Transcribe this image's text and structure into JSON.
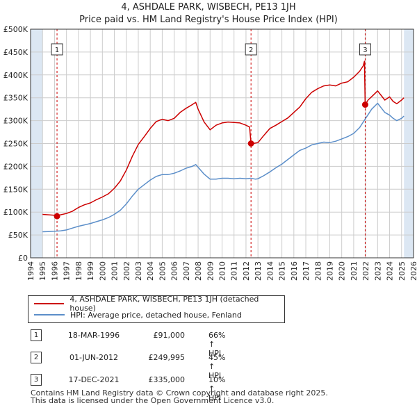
{
  "header": {
    "title_line1": "4, ASHDALE PARK, WISBECH, PE13 1JH",
    "title_line2": "Price paid vs. HM Land Registry's House Price Index (HPI)"
  },
  "colors": {
    "property": "#cc0000",
    "hpi": "#5b8ec9",
    "shade": "#dce7f3",
    "grid": "#cccccc",
    "marker_line": "#cc0000"
  },
  "legend": {
    "property_label": "4, ASHDALE PARK, WISBECH, PE13 1JH (detached house)",
    "hpi_label": "HPI: Average price, detached house, Fenland"
  },
  "sales": [
    {
      "num": "1",
      "date": "18-MAR-1996",
      "price": "£91,000",
      "hpi": "66% ↑ HPI"
    },
    {
      "num": "2",
      "date": "01-JUN-2012",
      "price": "£249,995",
      "hpi": "45% ↑ HPI"
    },
    {
      "num": "3",
      "date": "17-DEC-2021",
      "price": "£335,000",
      "hpi": "10% ↑ HPI"
    }
  ],
  "footer": {
    "line1": "Contains HM Land Registry data © Crown copyright and database right 2025.",
    "line2": "This data is licensed under the Open Government Licence v3.0."
  },
  "chart_data": {
    "type": "line",
    "title": "4, ASHDALE PARK, WISBECH, PE13 1JH — Price paid vs. HM Land Registry's House Price Index (HPI)",
    "xlabel": "",
    "ylabel": "",
    "xlim": [
      1994,
      2026
    ],
    "ylim": [
      0,
      500000
    ],
    "x_ticks": [
      1994,
      1995,
      1996,
      1997,
      1998,
      1999,
      2000,
      2001,
      2002,
      2003,
      2004,
      2005,
      2006,
      2007,
      2008,
      2009,
      2010,
      2011,
      2012,
      2013,
      2014,
      2015,
      2016,
      2017,
      2018,
      2019,
      2020,
      2021,
      2022,
      2023,
      2024,
      2025,
      2026
    ],
    "y_ticks": [
      0,
      50000,
      100000,
      150000,
      200000,
      250000,
      300000,
      350000,
      400000,
      450000,
      500000
    ],
    "y_tick_labels": [
      "£0",
      "£50K",
      "£100K",
      "£150K",
      "£200K",
      "£250K",
      "£300K",
      "£350K",
      "£400K",
      "£450K",
      "£500K"
    ],
    "data_range": [
      1995,
      2025.2
    ],
    "series": [
      {
        "name": "4, ASHDALE PARK, WISBECH, PE13 1JH (detached house)",
        "x": [
          1995.0,
          1995.5,
          1996.0,
          1996.2,
          1996.5,
          1997.0,
          1997.5,
          1998.0,
          1998.5,
          1999.0,
          1999.5,
          2000.0,
          2000.5,
          2001.0,
          2001.5,
          2002.0,
          2002.5,
          2003.0,
          2003.5,
          2004.0,
          2004.5,
          2005.0,
          2005.5,
          2006.0,
          2006.5,
          2007.0,
          2007.5,
          2007.8,
          2008.0,
          2008.5,
          2009.0,
          2009.5,
          2010.0,
          2010.5,
          2011.0,
          2011.5,
          2012.0,
          2012.3,
          2012.42,
          2012.6,
          2013.0,
          2013.5,
          2014.0,
          2014.5,
          2015.0,
          2015.5,
          2016.0,
          2016.5,
          2017.0,
          2017.5,
          2018.0,
          2018.5,
          2019.0,
          2019.5,
          2020.0,
          2020.5,
          2021.0,
          2021.5,
          2021.8,
          2021.9,
          2021.96,
          2022.2,
          2022.6,
          2023.0,
          2023.3,
          2023.6,
          2024.0,
          2024.3,
          2024.6,
          2025.0,
          2025.2
        ],
        "values": [
          95000,
          94000,
          93000,
          91000,
          94000,
          97000,
          102000,
          110000,
          116000,
          120000,
          127000,
          133000,
          140000,
          152000,
          168000,
          192000,
          222000,
          248000,
          265000,
          283000,
          298000,
          303000,
          300000,
          305000,
          318000,
          327000,
          335000,
          340000,
          325000,
          297000,
          280000,
          290000,
          295000,
          297000,
          296000,
          295000,
          290000,
          286000,
          249995,
          250000,
          252000,
          268000,
          283000,
          290000,
          298000,
          306000,
          318000,
          330000,
          348000,
          362000,
          370000,
          376000,
          378000,
          376000,
          382000,
          385000,
          395000,
          408000,
          420000,
          430000,
          335000,
          345000,
          355000,
          365000,
          355000,
          345000,
          352000,
          342000,
          337000,
          345000,
          350000
        ]
      },
      {
        "name": "HPI: Average price, detached house, Fenland",
        "x": [
          1995.0,
          1995.5,
          1996.0,
          1996.5,
          1997.0,
          1997.5,
          1998.0,
          1998.5,
          1999.0,
          1999.5,
          2000.0,
          2000.5,
          2001.0,
          2001.5,
          2002.0,
          2002.5,
          2003.0,
          2003.5,
          2004.0,
          2004.5,
          2005.0,
          2005.5,
          2006.0,
          2006.5,
          2007.0,
          2007.5,
          2007.8,
          2008.0,
          2008.5,
          2009.0,
          2009.5,
          2010.0,
          2010.5,
          2011.0,
          2011.5,
          2012.0,
          2012.4,
          2012.8,
          2013.0,
          2013.5,
          2014.0,
          2014.5,
          2015.0,
          2015.5,
          2016.0,
          2016.5,
          2017.0,
          2017.5,
          2018.0,
          2018.5,
          2019.0,
          2019.5,
          2020.0,
          2020.5,
          2021.0,
          2021.5,
          2022.0,
          2022.5,
          2023.0,
          2023.3,
          2023.6,
          2024.0,
          2024.3,
          2024.6,
          2025.0,
          2025.2
        ],
        "values": [
          57000,
          57500,
          58000,
          59000,
          61000,
          65000,
          69000,
          72000,
          75000,
          79000,
          83000,
          88000,
          95000,
          104000,
          118000,
          135000,
          150000,
          160000,
          170000,
          178000,
          182000,
          182000,
          185000,
          190000,
          196000,
          200000,
          204000,
          198000,
          183000,
          172000,
          172000,
          174000,
          174000,
          173000,
          174000,
          173000,
          174000,
          172000,
          173000,
          180000,
          188000,
          197000,
          205000,
          215000,
          225000,
          235000,
          240000,
          247000,
          250000,
          253000,
          252000,
          255000,
          260000,
          265000,
          272000,
          285000,
          305000,
          325000,
          338000,
          328000,
          318000,
          312000,
          305000,
          300000,
          305000,
          310000
        ]
      }
    ],
    "sale_markers": [
      {
        "label": "1",
        "x": 1996.21,
        "y": 91000
      },
      {
        "label": "2",
        "x": 2012.42,
        "y": 249995
      },
      {
        "label": "3",
        "x": 2021.96,
        "y": 335000
      }
    ]
  }
}
